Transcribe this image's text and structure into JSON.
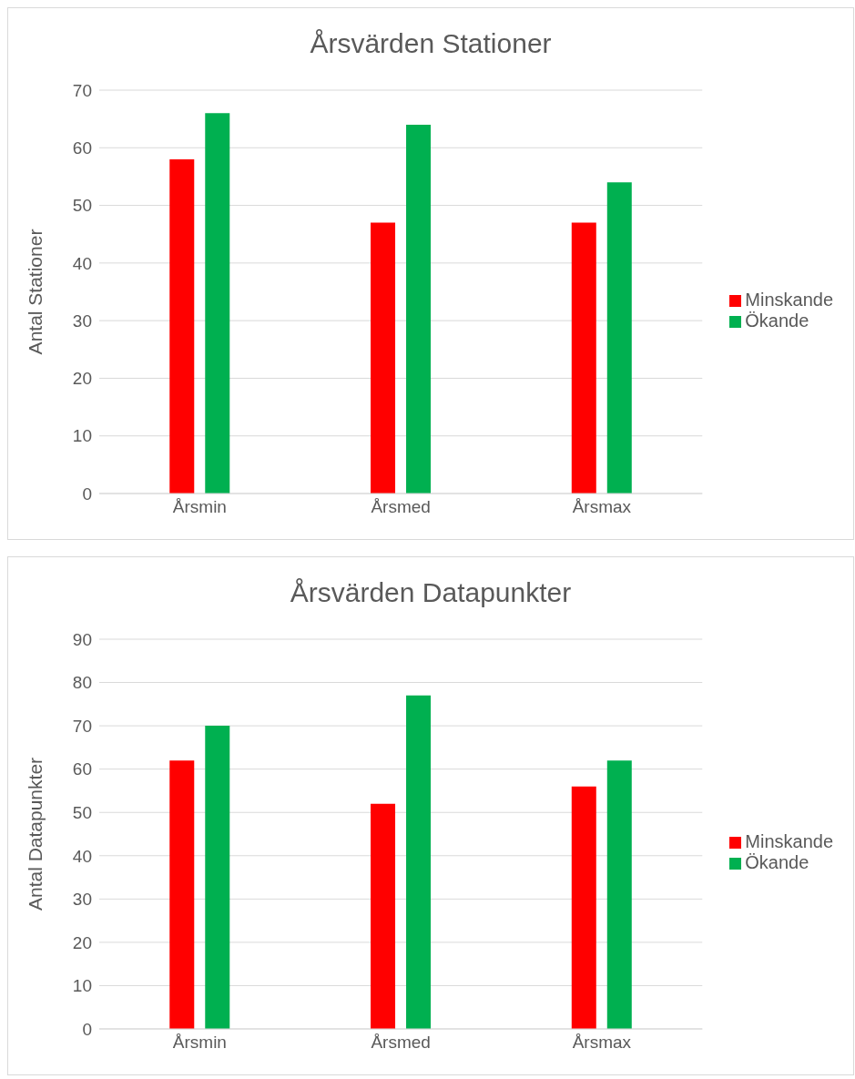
{
  "chart_data": [
    {
      "type": "bar",
      "title": "Årsvärden Stationer",
      "ylabel": "Antal Stationer",
      "categories": [
        "Årsmin",
        "Årsmed",
        "Årsmax"
      ],
      "series": [
        {
          "name": "Minskande",
          "color": "#ff0000",
          "values": [
            58,
            47,
            47
          ]
        },
        {
          "name": "Ökande",
          "color": "#00b050",
          "values": [
            66,
            64,
            54
          ]
        }
      ],
      "ylim": [
        0,
        70
      ],
      "yticks": [
        0,
        10,
        20,
        30,
        40,
        50,
        60,
        70
      ],
      "grid": "y",
      "legend": "right"
    },
    {
      "type": "bar",
      "title": "Årsvärden Datapunkter",
      "ylabel": "Antal Datapunkter",
      "categories": [
        "Årsmin",
        "Årsmed",
        "Årsmax"
      ],
      "series": [
        {
          "name": "Minskande",
          "color": "#ff0000",
          "values": [
            62,
            52,
            56
          ]
        },
        {
          "name": "Ökande",
          "color": "#00b050",
          "values": [
            70,
            77,
            62
          ]
        }
      ],
      "ylim": [
        0,
        90
      ],
      "yticks": [
        0,
        10,
        20,
        30,
        40,
        50,
        60,
        70,
        80,
        90
      ],
      "grid": "y",
      "legend": "right"
    }
  ]
}
